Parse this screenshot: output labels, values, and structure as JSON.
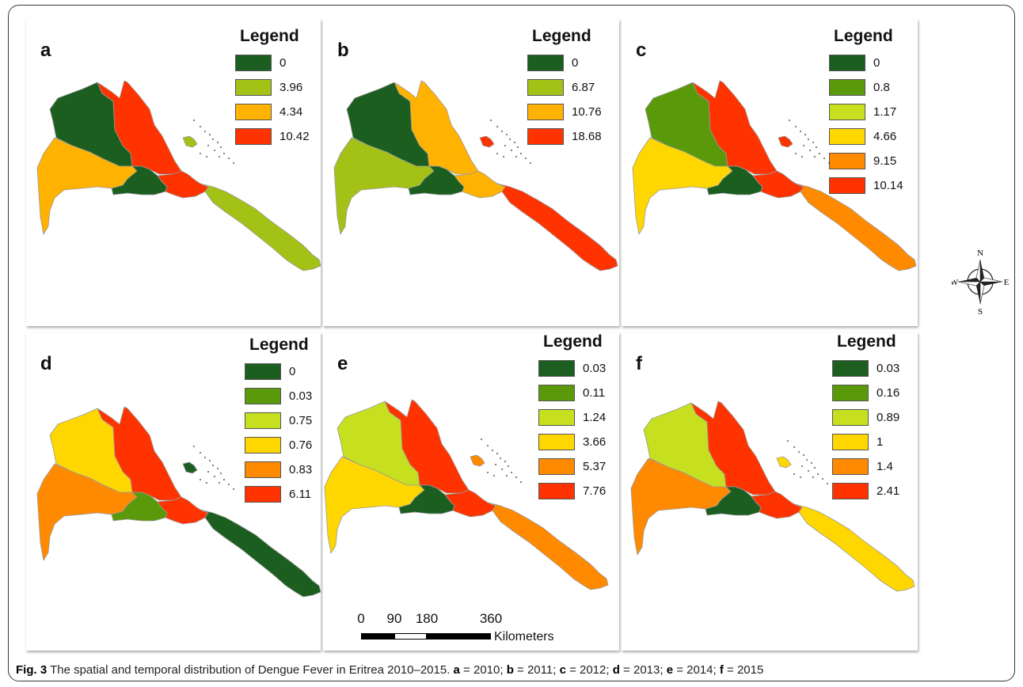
{
  "legend_title": "Legend",
  "panels": [
    {
      "letter": "a",
      "colors": {
        "nw": "#1b5e20",
        "n": "#ff3300",
        "w": "#ffb300",
        "c": "#1b5e20",
        "m": "#ff3300",
        "se": "#a3c215",
        "isl": "#a3c215"
      },
      "legend": [
        {
          "color": "#1b5e20",
          "label": "0"
        },
        {
          "color": "#a3c215",
          "label": "3.96"
        },
        {
          "color": "#ffb300",
          "label": "4.34"
        },
        {
          "color": "#ff3300",
          "label": "10.42"
        }
      ]
    },
    {
      "letter": "b",
      "colors": {
        "nw": "#1b5e20",
        "n": "#ffb300",
        "w": "#a3c215",
        "c": "#1b5e20",
        "m": "#ffb300",
        "se": "#ff3300",
        "isl": "#ff3300"
      },
      "legend": [
        {
          "color": "#1b5e20",
          "label": "0"
        },
        {
          "color": "#a3c215",
          "label": "6.87"
        },
        {
          "color": "#ffb300",
          "label": "10.76"
        },
        {
          "color": "#ff3300",
          "label": "18.68"
        }
      ]
    },
    {
      "letter": "c",
      "colors": {
        "nw": "#5a9a0a",
        "n": "#ff3300",
        "w": "#ffd700",
        "c": "#1b5e20",
        "m": "#ff3300",
        "se": "#ff8a00",
        "isl": "#ff3300"
      },
      "legend": [
        {
          "color": "#1b5e20",
          "label": "0"
        },
        {
          "color": "#5a9a0a",
          "label": "0.8"
        },
        {
          "color": "#c6e01f",
          "label": "1.17"
        },
        {
          "color": "#ffd700",
          "label": "4.66"
        },
        {
          "color": "#ff8a00",
          "label": "9.15"
        },
        {
          "color": "#ff3300",
          "label": "10.14"
        }
      ]
    },
    {
      "letter": "d",
      "colors": {
        "nw": "#ffd700",
        "n": "#ff3300",
        "w": "#ff8a00",
        "c": "#5a9a0a",
        "m": "#ff3300",
        "se": "#1b5e20",
        "isl": "#1b5e20"
      },
      "legend": [
        {
          "color": "#1b5e20",
          "label": "0"
        },
        {
          "color": "#5a9a0a",
          "label": "0.03"
        },
        {
          "color": "#c6e01f",
          "label": "0.75"
        },
        {
          "color": "#ffd700",
          "label": "0.76"
        },
        {
          "color": "#ff8a00",
          "label": "0.83"
        },
        {
          "color": "#ff3300",
          "label": "6.11"
        }
      ]
    },
    {
      "letter": "e",
      "colors": {
        "nw": "#c6e01f",
        "n": "#ff3300",
        "w": "#ffd700",
        "c": "#1b5e20",
        "m": "#ff3300",
        "se": "#ff8a00",
        "isl": "#ff8a00"
      },
      "legend": [
        {
          "color": "#1b5e20",
          "label": "0.03"
        },
        {
          "color": "#5a9a0a",
          "label": "0.11"
        },
        {
          "color": "#c6e01f",
          "label": "1.24"
        },
        {
          "color": "#ffd700",
          "label": "3.66"
        },
        {
          "color": "#ff8a00",
          "label": "5.37"
        },
        {
          "color": "#ff3300",
          "label": "7.76"
        }
      ]
    },
    {
      "letter": "f",
      "colors": {
        "nw": "#c6e01f",
        "n": "#ff3300",
        "w": "#ff8a00",
        "c": "#1b5e20",
        "m": "#ff3300",
        "se": "#ffd700",
        "isl": "#ffd700"
      },
      "legend": [
        {
          "color": "#1b5e20",
          "label": "0.03"
        },
        {
          "color": "#5a9a0a",
          "label": "0.16"
        },
        {
          "color": "#c6e01f",
          "label": "0.89"
        },
        {
          "color": "#ffd700",
          "label": "1"
        },
        {
          "color": "#ff8a00",
          "label": "1.4"
        },
        {
          "color": "#ff3300",
          "label": "2.41"
        }
      ]
    }
  ],
  "compass": {
    "n": "N",
    "s": "S",
    "e": "E",
    "w": "W"
  },
  "scale": {
    "ticks": [
      "0",
      "90",
      "180",
      "360"
    ],
    "unit": "Kilometers"
  },
  "caption": {
    "fig": "Fig. 3",
    "text": " The spatial and temporal distribution of Dengue Fever in Eritrea 2010–2015. ",
    "items": [
      {
        "k": "a",
        "v": " = 2010; "
      },
      {
        "k": "b",
        "v": " = 2011; "
      },
      {
        "k": "c",
        "v": " = 2012; "
      },
      {
        "k": "d",
        "v": " = 2013; "
      },
      {
        "k": "e",
        "v": " = 2014; "
      },
      {
        "k": "f",
        "v": " = 2015"
      }
    ]
  }
}
